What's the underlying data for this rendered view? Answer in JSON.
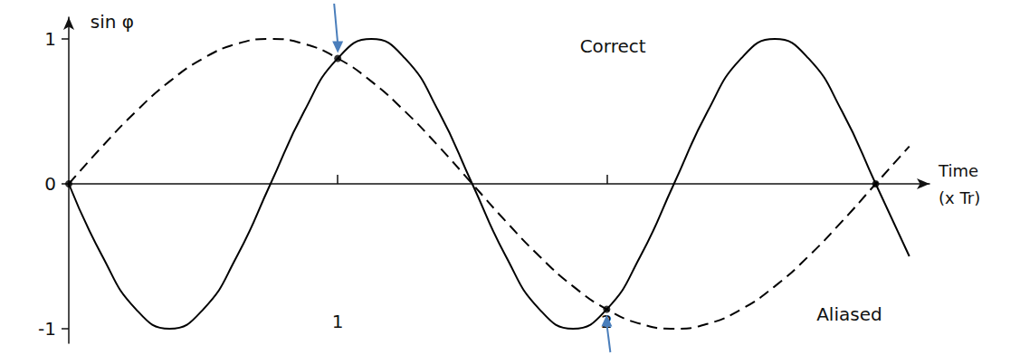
{
  "chart_data": {
    "type": "line",
    "ylabel": "sin φ",
    "xlabel": "Time (x Tr)",
    "x": [
      0,
      0.125,
      0.25,
      0.375,
      0.5,
      0.625,
      0.75,
      0.875,
      1,
      1.125,
      1.25,
      1.375,
      1.5,
      1.625,
      1.75,
      1.875,
      2,
      2.125,
      2.25,
      2.375,
      2.5,
      2.625,
      2.75,
      2.875,
      3,
      3.125
    ],
    "series": [
      {
        "name": "Correct",
        "color": "#000000",
        "line_style": "solid",
        "values": [
          0,
          -0.5,
          -0.866,
          -1,
          -0.866,
          -0.5,
          0,
          0.5,
          0.866,
          1,
          0.866,
          0.5,
          0,
          -0.5,
          -0.866,
          -1,
          -0.866,
          -0.5,
          0,
          0.5,
          0.866,
          1,
          0.866,
          0.5,
          0,
          -0.5
        ]
      },
      {
        "name": "Aliased",
        "color": "#000000",
        "line_style": "dashed",
        "values": [
          0,
          0.259,
          0.5,
          0.707,
          0.866,
          0.966,
          1,
          0.966,
          0.866,
          0.707,
          0.5,
          0.259,
          0,
          -0.259,
          -0.5,
          -0.707,
          -0.866,
          -0.966,
          -1,
          -0.966,
          -0.866,
          -0.707,
          -0.5,
          -0.259,
          0,
          0.259
        ]
      }
    ],
    "samples": {
      "x": [
        0,
        1,
        2,
        3
      ],
      "values": [
        0,
        0.866,
        -0.866,
        0
      ],
      "color": "#000000"
    },
    "arrows": {
      "x": [
        1,
        2
      ],
      "values": [
        0.866,
        -0.866
      ],
      "color": "#4a7ebb"
    },
    "xlim": [
      0,
      3.2
    ],
    "xticks": [
      1,
      2
    ],
    "ylim": [
      -1.1,
      1.15
    ],
    "yticks": [
      -1,
      0,
      1
    ],
    "grid": false
  }
}
